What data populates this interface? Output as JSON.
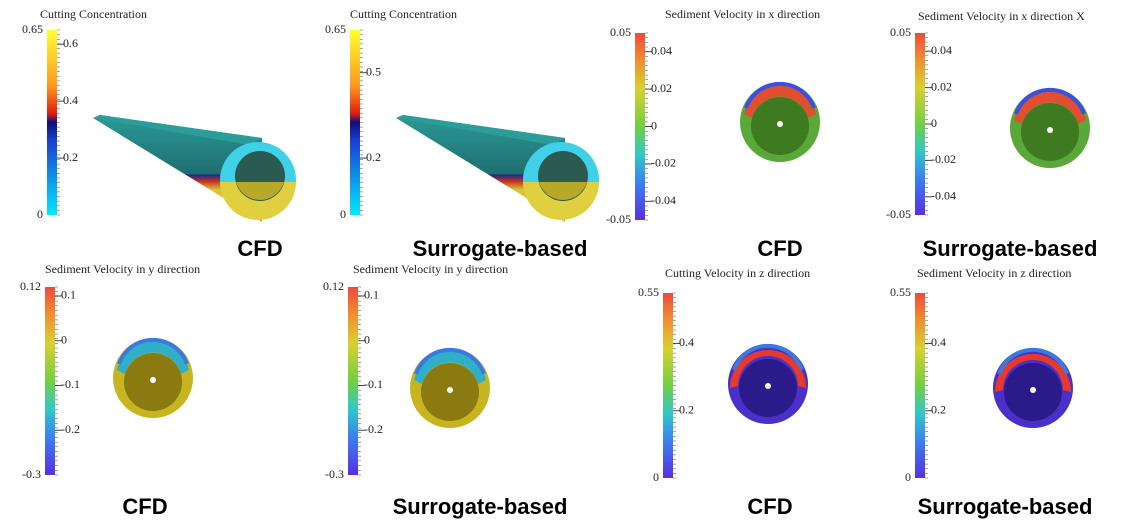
{
  "panels": [
    {
      "title": "Cutting Concentration",
      "max": 0.65,
      "min": 0,
      "ticks": [
        0.6,
        0.4,
        0.2
      ],
      "caption": "CFD"
    },
    {
      "title": "Cutting Concentration",
      "max": 0.65,
      "min": 0,
      "ticks": [
        0.5,
        0.2
      ],
      "caption": "Surrogate-based"
    },
    {
      "title": "Sediment Velocity in x direction",
      "max": 0.05,
      "min": -0.05,
      "ticks": [
        0.04,
        0.02,
        0,
        -0.02,
        -0.04
      ],
      "caption": "CFD"
    },
    {
      "title": "Sediment Velocity in x direction X",
      "max": 0.05,
      "min": -0.05,
      "ticks": [
        0.04,
        0.02,
        0,
        -0.02,
        -0.04
      ],
      "caption": "Surrogate-based"
    },
    {
      "title": "Sediment Velocity in y direction",
      "max": 0.12,
      "min": -0.3,
      "ticks": [
        0.1,
        0,
        -0.1,
        -0.2
      ],
      "caption": "CFD"
    },
    {
      "title": "Sediment Velocity in y direction",
      "max": 0.12,
      "min": -0.3,
      "ticks": [
        0.1,
        0,
        -0.1,
        -0.2
      ],
      "caption": "Surrogate-based"
    },
    {
      "title": "Cutting Velocity in z direction",
      "max": 0.55,
      "min": 0,
      "ticks": [
        0.4,
        0.2
      ],
      "caption": "CFD"
    },
    {
      "title": "Sediment Velocity in z direction",
      "max": 0.55,
      "min": 0,
      "ticks": [
        0.4,
        0.2
      ],
      "caption": "Surrogate-based"
    }
  ]
}
